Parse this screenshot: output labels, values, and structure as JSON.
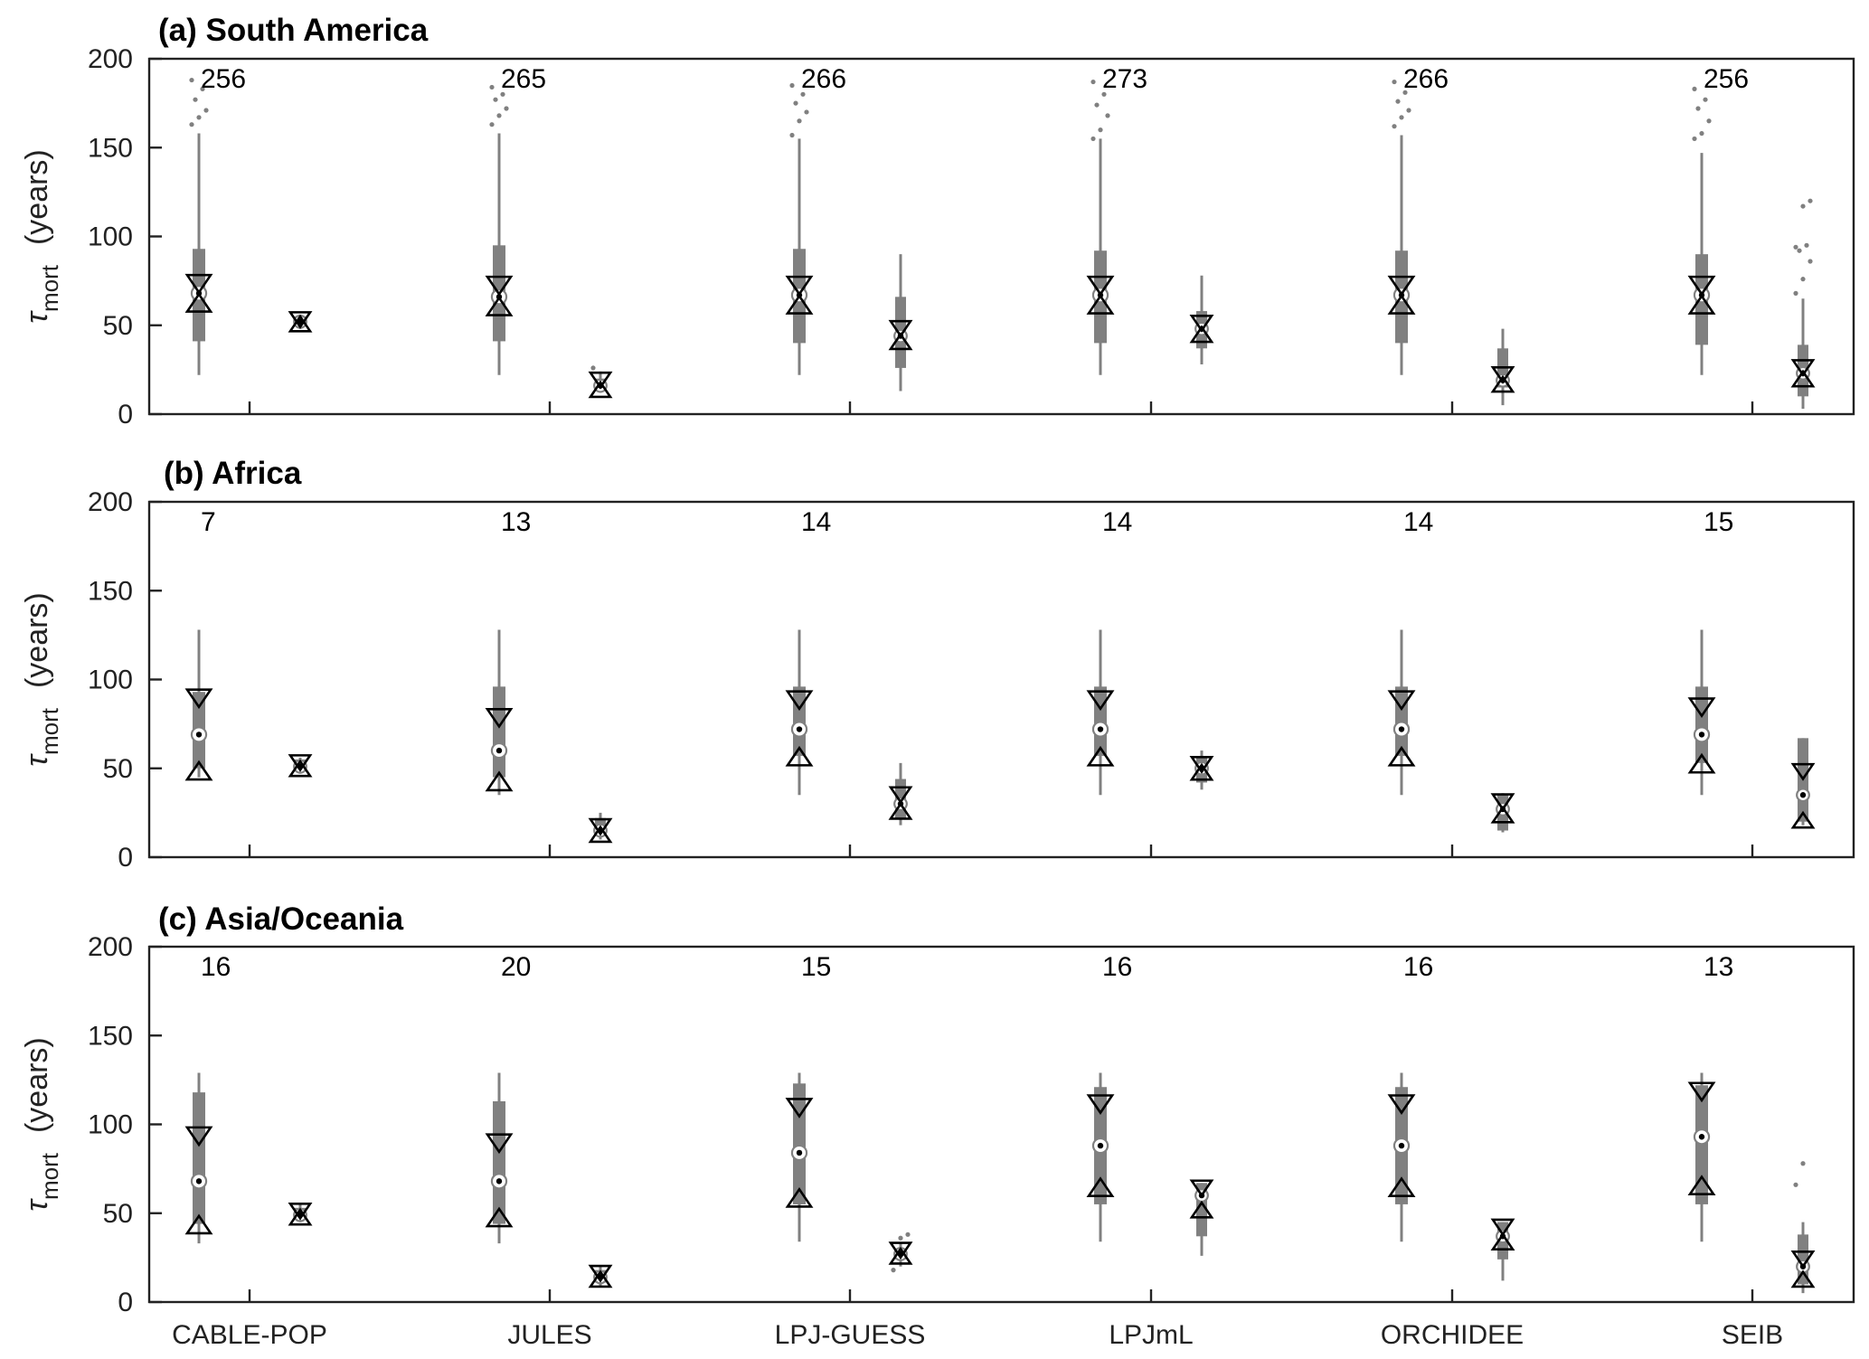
{
  "chart_data": [
    {
      "type": "boxplot",
      "title": "(a) South America",
      "ylabel_symbol": "τ",
      "ylabel_subscript": "mort",
      "ylabel_unit": "(years)",
      "ylim": [
        0,
        200
      ],
      "yticks": [
        0,
        50,
        100,
        150,
        200
      ],
      "categories": [
        "CABLE-POP",
        "JULES",
        "LPJ-GUESS",
        "LPJmL",
        "ORCHIDEE",
        "SEIB"
      ],
      "counts": [
        "256",
        "265",
        "266",
        "273",
        "266",
        "256"
      ],
      "groups": [
        {
          "box": {
            "q1": 41,
            "q3": 93,
            "median": 68,
            "whisker_low": 22,
            "whisker_high": 158,
            "lower_mark": 64,
            "upper_mark": 72,
            "outliers": [
              163,
              167,
              171,
              177,
              183,
              188
            ]
          },
          "secondary": {
            "q1": 50,
            "q3": 55,
            "median": 52,
            "whisker_low": 48,
            "whisker_high": 56,
            "lower_mark": 52,
            "upper_mark": 52,
            "outliers": []
          }
        },
        {
          "box": {
            "q1": 41,
            "q3": 95,
            "median": 66,
            "whisker_low": 22,
            "whisker_high": 158,
            "lower_mark": 62,
            "upper_mark": 71,
            "outliers": [
              163,
              168,
              172,
              177,
              180,
              184
            ]
          },
          "secondary": {
            "q1": 14,
            "q3": 20,
            "median": 16,
            "whisker_low": 12,
            "whisker_high": 24,
            "lower_mark": 15,
            "upper_mark": 18,
            "outliers": [
              26
            ]
          }
        },
        {
          "box": {
            "q1": 40,
            "q3": 93,
            "median": 67,
            "whisker_low": 22,
            "whisker_high": 155,
            "lower_mark": 63,
            "upper_mark": 71,
            "outliers": [
              157,
              165,
              170,
              175,
              180,
              185
            ]
          },
          "secondary": {
            "q1": 26,
            "q3": 66,
            "median": 44,
            "whisker_low": 13,
            "whisker_high": 90,
            "lower_mark": 42,
            "upper_mark": 47,
            "outliers": []
          }
        },
        {
          "box": {
            "q1": 40,
            "q3": 92,
            "median": 67,
            "whisker_low": 22,
            "whisker_high": 155,
            "lower_mark": 63,
            "upper_mark": 71,
            "outliers": [
              155,
              160,
              168,
              174,
              180,
              187
            ]
          },
          "secondary": {
            "q1": 37,
            "q3": 58,
            "median": 48,
            "whisker_low": 28,
            "whisker_high": 78,
            "lower_mark": 46,
            "upper_mark": 50,
            "outliers": []
          }
        },
        {
          "box": {
            "q1": 40,
            "q3": 92,
            "median": 67,
            "whisker_low": 22,
            "whisker_high": 157,
            "lower_mark": 63,
            "upper_mark": 71,
            "outliers": [
              162,
              167,
              171,
              176,
              181,
              187
            ]
          },
          "secondary": {
            "q1": 15,
            "q3": 37,
            "median": 19,
            "whisker_low": 5,
            "whisker_high": 48,
            "lower_mark": 18,
            "upper_mark": 21,
            "outliers": []
          }
        },
        {
          "box": {
            "q1": 39,
            "q3": 90,
            "median": 67,
            "whisker_low": 22,
            "whisker_high": 147,
            "lower_mark": 63,
            "upper_mark": 71,
            "outliers": [
              155,
              158,
              165,
              172,
              177,
              183
            ]
          },
          "secondary": {
            "q1": 10,
            "q3": 39,
            "median": 23,
            "whisker_low": 3,
            "whisker_high": 65,
            "lower_mark": 21,
            "upper_mark": 25,
            "outliers": [
              68,
              76,
              86,
              92,
              95,
              94,
              117,
              120
            ]
          }
        }
      ]
    },
    {
      "type": "boxplot",
      "title": "(b) Africa",
      "ylabel_symbol": "τ",
      "ylabel_subscript": "mort",
      "ylabel_unit": "(years)",
      "ylim": [
        0,
        200
      ],
      "yticks": [
        0,
        50,
        100,
        150,
        200
      ],
      "categories": [
        "CABLE-POP",
        "JULES",
        "LPJ-GUESS",
        "LPJmL",
        "ORCHIDEE",
        "SEIB"
      ],
      "counts": [
        "7",
        "13",
        "14",
        "14",
        "14",
        "15"
      ],
      "groups": [
        {
          "box": {
            "q1": 50,
            "q3": 93,
            "median": 69,
            "whisker_low": 45,
            "whisker_high": 128,
            "lower_mark": 50,
            "upper_mark": 88,
            "outliers": []
          },
          "secondary": {
            "q1": 49,
            "q3": 55,
            "median": 51,
            "whisker_low": 47,
            "whisker_high": 56,
            "lower_mark": 51,
            "upper_mark": 52,
            "outliers": []
          }
        },
        {
          "box": {
            "q1": 45,
            "q3": 96,
            "median": 60,
            "whisker_low": 35,
            "whisker_high": 128,
            "lower_mark": 44,
            "upper_mark": 77,
            "outliers": []
          },
          "secondary": {
            "q1": 12,
            "q3": 22,
            "median": 15,
            "whisker_low": 10,
            "whisker_high": 25,
            "lower_mark": 14,
            "upper_mark": 16,
            "outliers": []
          }
        },
        {
          "box": {
            "q1": 57,
            "q3": 96,
            "median": 72,
            "whisker_low": 35,
            "whisker_high": 128,
            "lower_mark": 58,
            "upper_mark": 87,
            "outliers": []
          },
          "secondary": {
            "q1": 22,
            "q3": 44,
            "median": 30,
            "whisker_low": 18,
            "whisker_high": 53,
            "lower_mark": 27,
            "upper_mark": 34,
            "outliers": []
          }
        },
        {
          "box": {
            "q1": 57,
            "q3": 96,
            "median": 72,
            "whisker_low": 35,
            "whisker_high": 128,
            "lower_mark": 58,
            "upper_mark": 87,
            "outliers": []
          },
          "secondary": {
            "q1": 42,
            "q3": 57,
            "median": 50,
            "whisker_low": 38,
            "whisker_high": 60,
            "lower_mark": 49,
            "upper_mark": 51,
            "outliers": []
          }
        },
        {
          "box": {
            "q1": 57,
            "q3": 96,
            "median": 72,
            "whisker_low": 35,
            "whisker_high": 128,
            "lower_mark": 58,
            "upper_mark": 87,
            "outliers": []
          },
          "secondary": {
            "q1": 15,
            "q3": 35,
            "median": 27,
            "whisker_low": 14,
            "whisker_high": 36,
            "lower_mark": 25,
            "upper_mark": 30,
            "outliers": []
          }
        },
        {
          "box": {
            "q1": 53,
            "q3": 96,
            "median": 69,
            "whisker_low": 35,
            "whisker_high": 128,
            "lower_mark": 54,
            "upper_mark": 83,
            "outliers": []
          },
          "secondary": {
            "q1": 20,
            "q3": 67,
            "median": 35,
            "whisker_low": 18,
            "whisker_high": 67,
            "lower_mark": 22,
            "upper_mark": 47,
            "outliers": []
          }
        }
      ]
    },
    {
      "type": "boxplot",
      "title": "(c) Asia/Oceania",
      "ylabel_symbol": "τ",
      "ylabel_subscript": "mort",
      "ylabel_unit": "(years)",
      "ylim": [
        0,
        200
      ],
      "yticks": [
        0,
        50,
        100,
        150,
        200
      ],
      "categories": [
        "CABLE-POP",
        "JULES",
        "LPJ-GUESS",
        "LPJmL",
        "ORCHIDEE",
        "SEIB"
      ],
      "counts": [
        "16",
        "20",
        "15",
        "16",
        "16",
        "13"
      ],
      "groups": [
        {
          "box": {
            "q1": 44,
            "q3": 118,
            "median": 68,
            "whisker_low": 33,
            "whisker_high": 129,
            "lower_mark": 45,
            "upper_mark": 92,
            "outliers": []
          },
          "secondary": {
            "q1": 47,
            "q3": 53,
            "median": 49,
            "whisker_low": 45,
            "whisker_high": 55,
            "lower_mark": 49,
            "upper_mark": 50,
            "outliers": []
          }
        },
        {
          "box": {
            "q1": 44,
            "q3": 113,
            "median": 68,
            "whisker_low": 33,
            "whisker_high": 129,
            "lower_mark": 49,
            "upper_mark": 88,
            "outliers": []
          },
          "secondary": {
            "q1": 11,
            "q3": 18,
            "median": 14,
            "whisker_low": 9,
            "whisker_high": 20,
            "lower_mark": 14,
            "upper_mark": 15,
            "outliers": []
          }
        },
        {
          "box": {
            "q1": 55,
            "q3": 123,
            "median": 84,
            "whisker_low": 34,
            "whisker_high": 129,
            "lower_mark": 60,
            "upper_mark": 108,
            "outliers": []
          },
          "secondary": {
            "q1": 24,
            "q3": 30,
            "median": 27,
            "whisker_low": 20,
            "whisker_high": 33,
            "lower_mark": 27,
            "upper_mark": 28,
            "outliers": [
              18,
              36,
              38
            ]
          }
        },
        {
          "box": {
            "q1": 55,
            "q3": 121,
            "median": 88,
            "whisker_low": 34,
            "whisker_high": 129,
            "lower_mark": 66,
            "upper_mark": 110,
            "outliers": []
          },
          "secondary": {
            "q1": 37,
            "q3": 67,
            "median": 60,
            "whisker_low": 26,
            "whisker_high": 67,
            "lower_mark": 53,
            "upper_mark": 63,
            "outliers": []
          }
        },
        {
          "box": {
            "q1": 55,
            "q3": 121,
            "median": 88,
            "whisker_low": 34,
            "whisker_high": 129,
            "lower_mark": 66,
            "upper_mark": 110,
            "outliers": []
          },
          "secondary": {
            "q1": 24,
            "q3": 45,
            "median": 37,
            "whisker_low": 12,
            "whisker_high": 45,
            "lower_mark": 35,
            "upper_mark": 41,
            "outliers": []
          }
        },
        {
          "box": {
            "q1": 55,
            "q3": 122,
            "median": 93,
            "whisker_low": 34,
            "whisker_high": 129,
            "lower_mark": 67,
            "upper_mark": 117,
            "outliers": []
          },
          "secondary": {
            "q1": 10,
            "q3": 38,
            "median": 20,
            "whisker_low": 5,
            "whisker_high": 45,
            "lower_mark": 14,
            "upper_mark": 23,
            "outliers": [
              66,
              78
            ]
          }
        }
      ]
    }
  ]
}
